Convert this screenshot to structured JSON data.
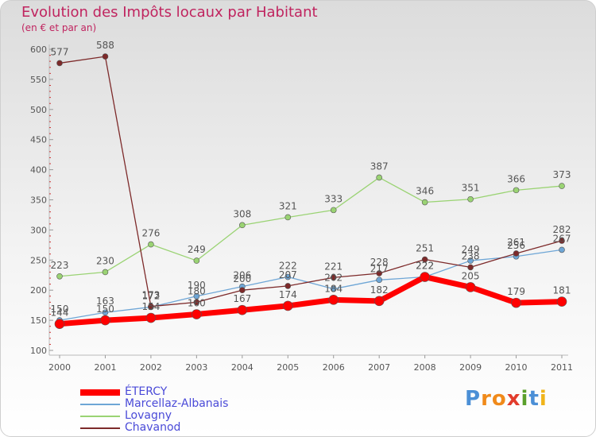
{
  "chart_data": {
    "type": "line",
    "title": "Evolution des Impôts locaux par Habitant",
    "subtitle": "(en € et par an)",
    "xlabel": "",
    "ylabel": "",
    "ylim": [
      100,
      600
    ],
    "yticks": [
      100,
      150,
      200,
      250,
      300,
      350,
      400,
      450,
      500,
      550,
      600
    ],
    "categories": [
      "2000",
      "2001",
      "2002",
      "2003",
      "2004",
      "2005",
      "2006",
      "2007",
      "2008",
      "2009",
      "2010",
      "2011"
    ],
    "grid": false,
    "series": [
      {
        "name": "ÉTERCY",
        "color": "#ff0000",
        "values": [
          144,
          150,
          154,
          160,
          167,
          174,
          184,
          182,
          222,
          205,
          179,
          181
        ]
      },
      {
        "name": "Marcellaz-Albanais",
        "color": "#6ea6d6",
        "values": [
          150,
          163,
          172,
          190,
          206,
          222,
          202,
          217,
          222,
          249,
          256,
          267
        ]
      },
      {
        "name": "Lovagny",
        "color": "#9ad373",
        "values": [
          223,
          230,
          276,
          249,
          308,
          321,
          333,
          387,
          346,
          351,
          366,
          373
        ]
      },
      {
        "name": "Chavanod",
        "color": "#7d2a2a",
        "values": [
          577,
          588,
          173,
          180,
          200,
          207,
          221,
          228,
          251,
          238,
          261,
          282
        ]
      }
    ],
    "data_labels": {
      "ÉTERCY": [
        "144",
        "150",
        "154",
        "160",
        "167",
        "174",
        "184",
        "182",
        "222",
        "205",
        "179",
        "181"
      ],
      "Marcellaz-Albanais": [
        "150",
        "163",
        "172",
        "190",
        "206",
        "222",
        "202",
        "217",
        "222",
        "249",
        "256",
        "267"
      ],
      "Lovagny": [
        "223",
        "230",
        "276",
        "249",
        "308",
        "321",
        "333",
        "387",
        "346",
        "351",
        "366",
        "373"
      ],
      "Chavanod": [
        "577",
        "588",
        "173",
        "180",
        "200",
        "207",
        "221",
        "228",
        "251",
        "238",
        "261",
        "282"
      ]
    }
  },
  "legend": {
    "items": [
      {
        "label": "ÉTERCY",
        "color": "#ff0000"
      },
      {
        "label": "Marcellaz-Albanais",
        "color": "#6ea6d6"
      },
      {
        "label": "Lovagny",
        "color": "#9ad373"
      },
      {
        "label": "Chavanod",
        "color": "#7d2a2a"
      }
    ]
  },
  "logo": {
    "letters": [
      "P",
      "r",
      "o",
      "x",
      "i",
      "t",
      "i"
    ],
    "colors": [
      "#4b8fd6",
      "#f08a1a",
      "#f08a1a",
      "#e23c2c",
      "#5aa02c",
      "#4b8fd6",
      "#f0b41a"
    ]
  }
}
